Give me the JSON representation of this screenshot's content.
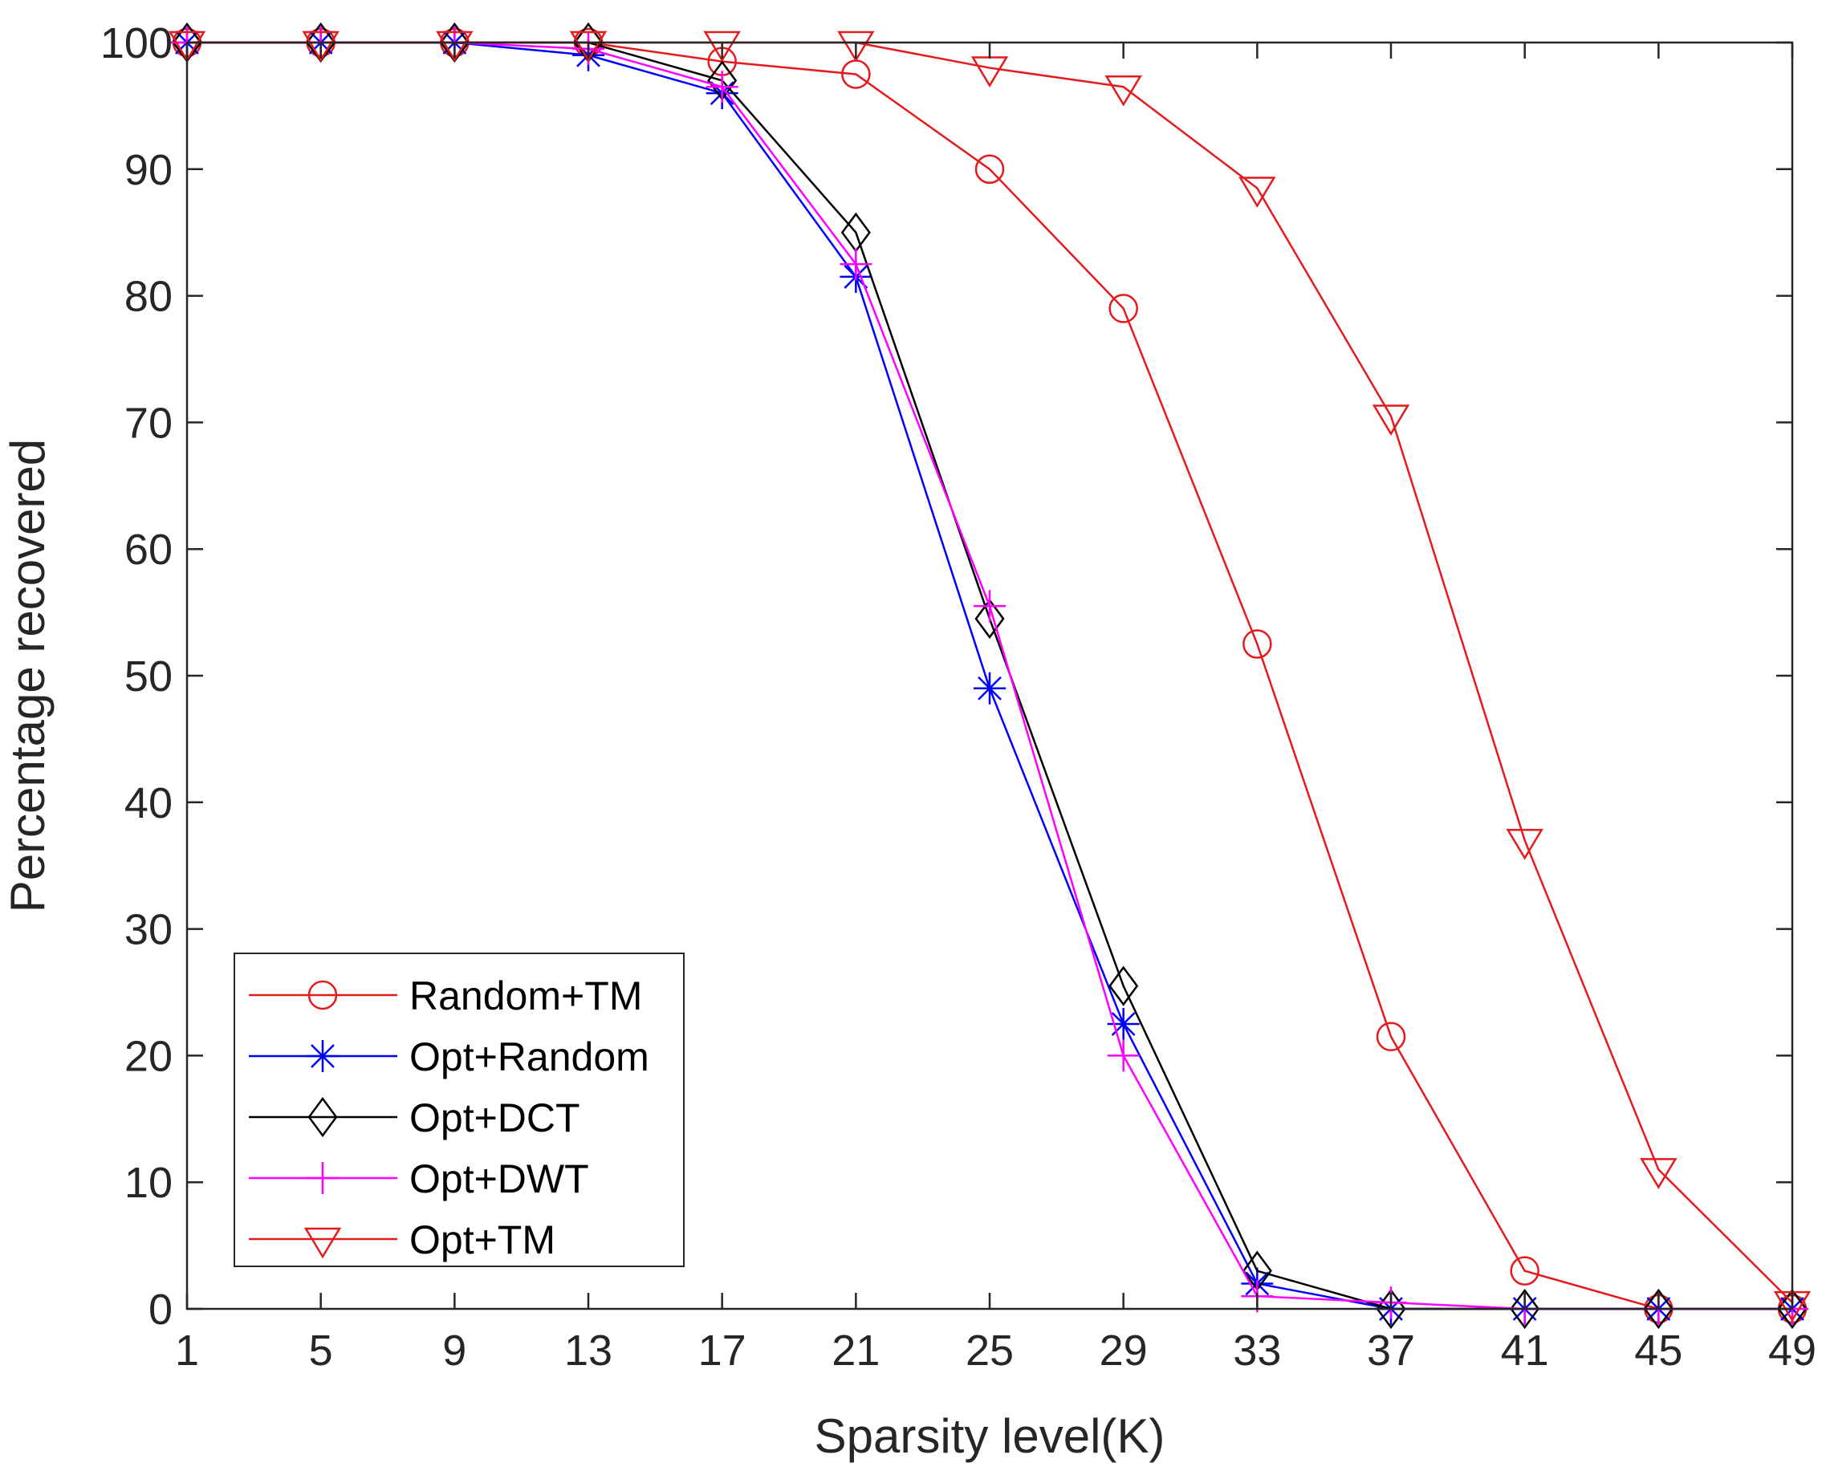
{
  "chart_data": {
    "type": "line",
    "title": "",
    "xlabel": "Sparsity level(K)",
    "ylabel": "Percentage recovered",
    "x": [
      1,
      5,
      9,
      13,
      17,
      21,
      25,
      29,
      33,
      37,
      41,
      45,
      49
    ],
    "xticks": [
      "1",
      "5",
      "9",
      "13",
      "17",
      "21",
      "25",
      "29",
      "33",
      "37",
      "41",
      "45",
      "49"
    ],
    "yticks": [
      "0",
      "10",
      "20",
      "30",
      "40",
      "50",
      "60",
      "70",
      "80",
      "90",
      "100"
    ],
    "xlim": [
      1,
      49
    ],
    "ylim": [
      0,
      100
    ],
    "grid": false,
    "legend_position": "bottom-left",
    "series": [
      {
        "name": "Random+TM",
        "color": "#e41a1c",
        "marker": "circle",
        "values": [
          100,
          100,
          100,
          100,
          98.5,
          97.5,
          90,
          79,
          52.5,
          21.5,
          3,
          0,
          0
        ]
      },
      {
        "name": "Opt+Random",
        "color": "#0000ff",
        "marker": "asterisk",
        "values": [
          100,
          100,
          100,
          99,
          96,
          81.5,
          49,
          22.5,
          2,
          0,
          0,
          0,
          0
        ]
      },
      {
        "name": "Opt+DCT",
        "color": "#000000",
        "marker": "diamond",
        "values": [
          100,
          100,
          100,
          100,
          97,
          85,
          54.5,
          25.5,
          3,
          0,
          0,
          0,
          0
        ]
      },
      {
        "name": "Opt+DWT",
        "color": "#ff00ff",
        "marker": "plus",
        "values": [
          100,
          100,
          100,
          99.5,
          96.5,
          82.5,
          55.5,
          20,
          1,
          0.5,
          0,
          0,
          0
        ]
      },
      {
        "name": "Opt+TM",
        "color": "#e41a1c",
        "marker": "triangle-down",
        "values": [
          100,
          100,
          100,
          100,
          100,
          100,
          98,
          96.5,
          88.5,
          70.5,
          37,
          11,
          0.5
        ]
      }
    ]
  }
}
